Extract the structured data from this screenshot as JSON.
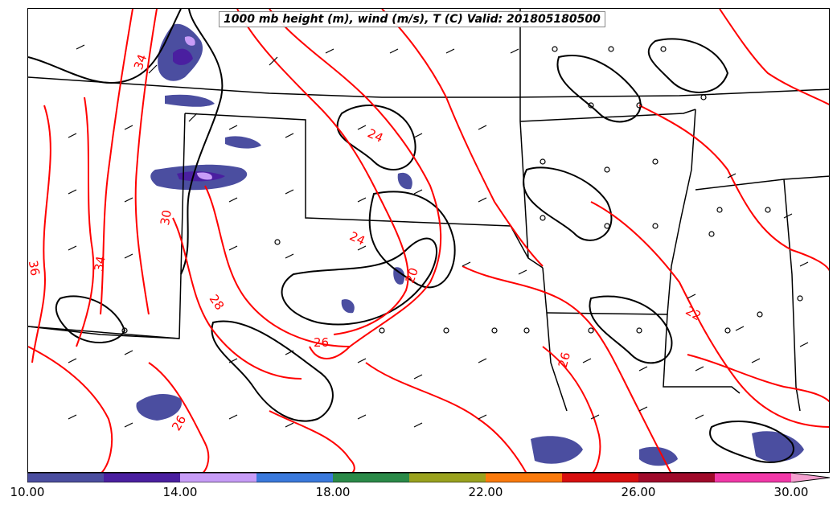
{
  "map": {
    "title": "1000 mb height (m), wind (m/s), T (C) Valid: 201805180500",
    "temperature_contour_labels": [
      "34",
      "30",
      "36",
      "34",
      "28",
      "26",
      "24",
      "24",
      "20",
      "22",
      "26",
      "26"
    ]
  },
  "colorbar": {
    "colors": [
      "#4b4ea0",
      "#4a1fa0",
      "#c79cf7",
      "#3a79dc",
      "#2a8a48",
      "#9aa21e",
      "#fa7a0c",
      "#d80f0f",
      "#a00a2a",
      "#f238a8",
      "#f5a0d0"
    ],
    "tick_labels": [
      "10.00",
      "14.00",
      "18.00",
      "22.00",
      "26.00",
      "30.00"
    ]
  },
  "legend_colors": {
    "temperature_contour": "#ff0000",
    "height_contour": "#000000",
    "boundaries": "#000000"
  }
}
